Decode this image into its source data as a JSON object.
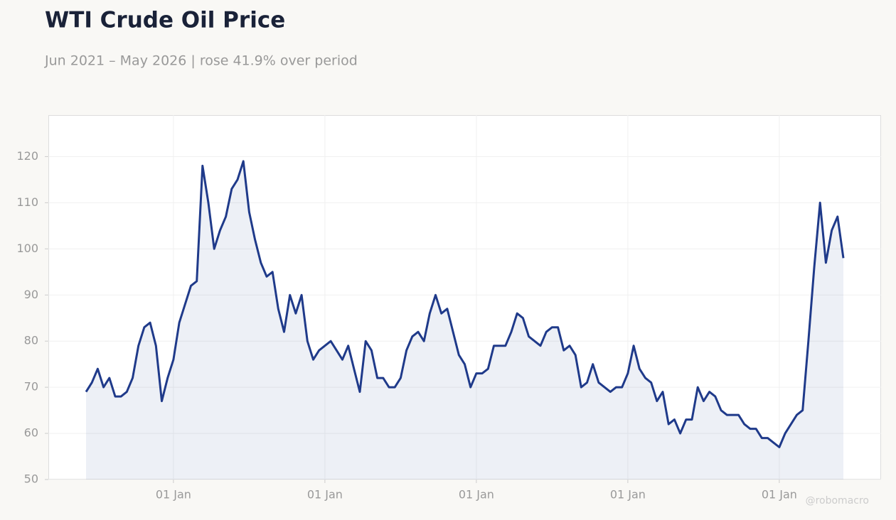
{
  "chart_data": {
    "type": "line",
    "title": "WTI Crude Oil Price",
    "subtitle": "Jun 2021 – May 2026 | rose 41.9% over period",
    "watermark": "@robomacro",
    "categories": [
      null,
      null,
      null,
      null,
      null,
      null,
      null,
      null,
      null,
      null,
      null,
      null,
      null,
      null,
      null,
      "01 Jan",
      null,
      null,
      null,
      null,
      null,
      null,
      null,
      null,
      null,
      null,
      null,
      null,
      null,
      null,
      null,
      null,
      null,
      null,
      null,
      null,
      null,
      null,
      null,
      null,
      null,
      "01 Jan",
      null,
      null,
      null,
      null,
      null,
      null,
      null,
      null,
      null,
      null,
      null,
      null,
      null,
      null,
      null,
      null,
      null,
      null,
      null,
      null,
      null,
      null,
      null,
      null,
      null,
      "01 Jan",
      null,
      null,
      null,
      null,
      null,
      null,
      null,
      null,
      null,
      null,
      null,
      null,
      null,
      null,
      null,
      null,
      null,
      null,
      null,
      null,
      null,
      null,
      null,
      null,
      null,
      "01 Jan",
      null,
      null,
      null,
      null,
      null,
      null,
      null,
      null,
      null,
      null,
      null,
      null,
      null,
      null,
      null,
      null,
      null,
      null,
      null,
      null,
      null,
      null,
      null,
      null,
      null,
      "01 Jan",
      null,
      null,
      null,
      null,
      null,
      null,
      null,
      null,
      null,
      null,
      null
    ],
    "series": [
      {
        "name": "WTI",
        "color": "#1f3a8a",
        "values": [
          69,
          71,
          74,
          70,
          72,
          68,
          68,
          69,
          72,
          79,
          83,
          84,
          79,
          67,
          72,
          76,
          84,
          88,
          92,
          93,
          118,
          110,
          100,
          104,
          107,
          113,
          115,
          119,
          108,
          102,
          97,
          94,
          95,
          87,
          82,
          90,
          86,
          90,
          80,
          76,
          78,
          79,
          80,
          78,
          76,
          79,
          74,
          69,
          80,
          78,
          72,
          72,
          70,
          70,
          72,
          78,
          81,
          82,
          80,
          86,
          90,
          86,
          87,
          82,
          77,
          75,
          70,
          73,
          73,
          74,
          79,
          79,
          79,
          82,
          86,
          85,
          81,
          80,
          79,
          82,
          83,
          83,
          78,
          79,
          77,
          70,
          71,
          75,
          71,
          70,
          69,
          70,
          70,
          73,
          79,
          74,
          72,
          71,
          67,
          69,
          62,
          63,
          60,
          63,
          63,
          70,
          67,
          69,
          68,
          65,
          64,
          64,
          64,
          62,
          61,
          61,
          59,
          59,
          58,
          57,
          60,
          62,
          64,
          65,
          80,
          96,
          110,
          97,
          104,
          107,
          98
        ]
      }
    ],
    "ylim": [
      50,
      129
    ],
    "yticks": [
      50,
      60,
      70,
      80,
      90,
      100,
      110,
      120
    ],
    "grid": true
  }
}
